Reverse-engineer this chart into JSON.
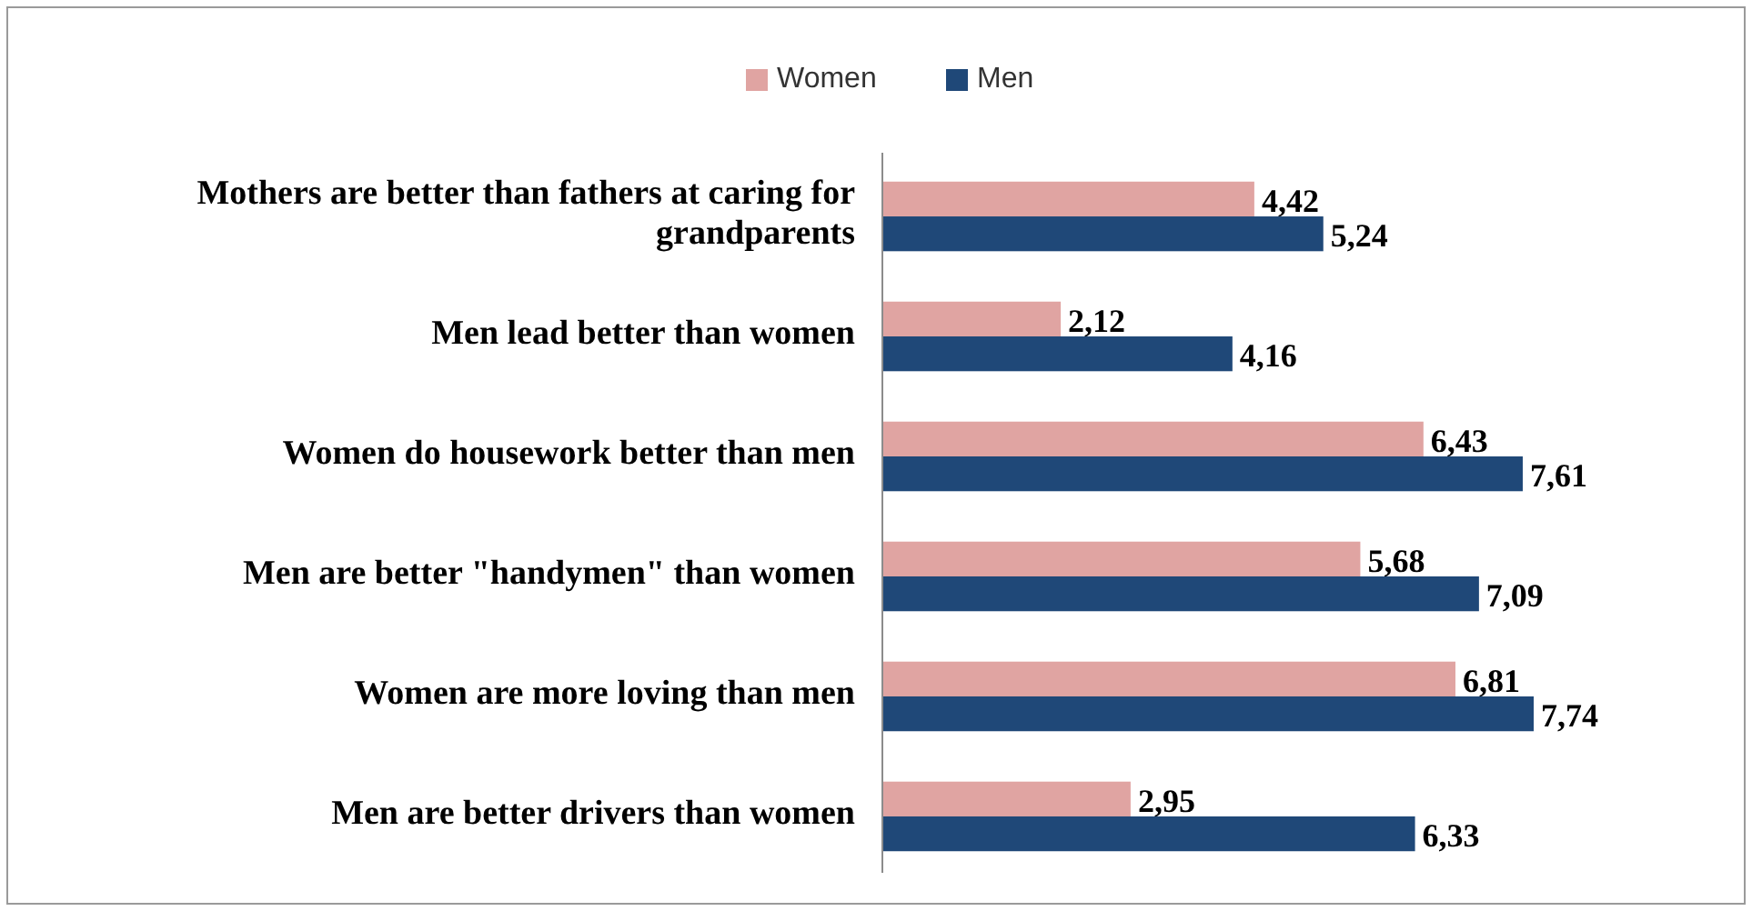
{
  "chart_data": {
    "type": "bar",
    "orientation": "horizontal",
    "legend": "top",
    "categories": [
      "Mothers are better than fathers at caring for grandparents",
      "Men lead better than women",
      "Women do housework better than men",
      "Men are better \"handymen\" than women",
      "Women are more loving than men",
      "Men are better drivers than women"
    ],
    "series": [
      {
        "name": "Women",
        "color": "#e0a4a2",
        "values": [
          4.42,
          2.12,
          6.43,
          5.68,
          6.81,
          2.95
        ],
        "value_labels": [
          "4,42",
          "2,12",
          "6,43",
          "5,68",
          "6,81",
          "2,95"
        ]
      },
      {
        "name": "Men",
        "color": "#1f4878",
        "values": [
          5.24,
          4.16,
          7.61,
          7.09,
          7.74,
          6.33
        ],
        "value_labels": [
          "5,24",
          "4,16",
          "7,61",
          "7,09",
          "7,74",
          "6,33"
        ]
      }
    ]
  }
}
